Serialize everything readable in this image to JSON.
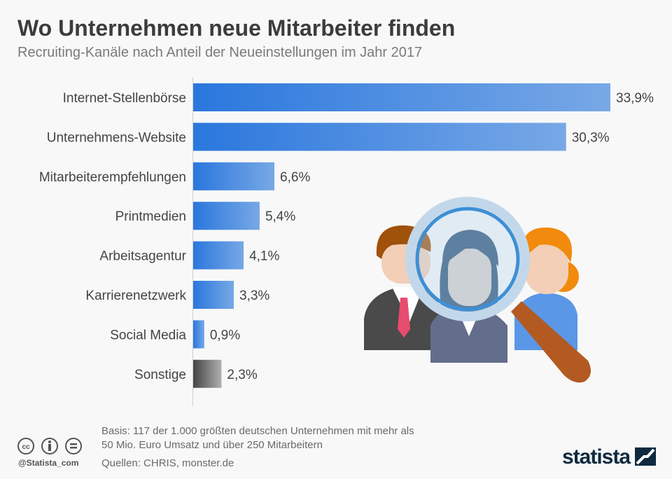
{
  "header": {
    "title": "Wo Unternehmen neue Mitarbeiter finden",
    "subtitle": "Recruiting-Kanäle nach Anteil der Neueinstellungen im Jahr 2017"
  },
  "chart_data": {
    "type": "bar",
    "orientation": "horizontal",
    "categories": [
      "Internet-Stellenbörse",
      "Unternehmens-Website",
      "Mitarbeiterempfehlungen",
      "Printmedien",
      "Arbeitsagentur",
      "Karrierenetzwerk",
      "Social Media",
      "Sonstige"
    ],
    "values": [
      33.9,
      30.3,
      6.6,
      5.4,
      4.1,
      3.3,
      0.9,
      2.3
    ],
    "labels": [
      "33,9%",
      "30,3%",
      "6,6%",
      "5,4%",
      "4,1%",
      "3,3%",
      "0,9%",
      "2,3%"
    ],
    "unit": "%",
    "xlim": [
      0,
      34
    ],
    "grid": false,
    "colors": {
      "bar": "#2a77dd",
      "bar_light": "#78a8e6",
      "other": "#444444",
      "other_light": "#b0b0b0"
    }
  },
  "footer": {
    "basis_line1": "Basis: 117 der 1.000 größten deutschen Unternehmen mit mehr als",
    "basis_line2": "50 Mio. Euro Umsatz und über 250 Mitarbeitern",
    "sources": "Quellen: CHRIS, monster.de",
    "handle": "@Statista_com",
    "logo": "statista",
    "license_icons": [
      "cc-icon",
      "by-icon",
      "nd-icon"
    ]
  }
}
